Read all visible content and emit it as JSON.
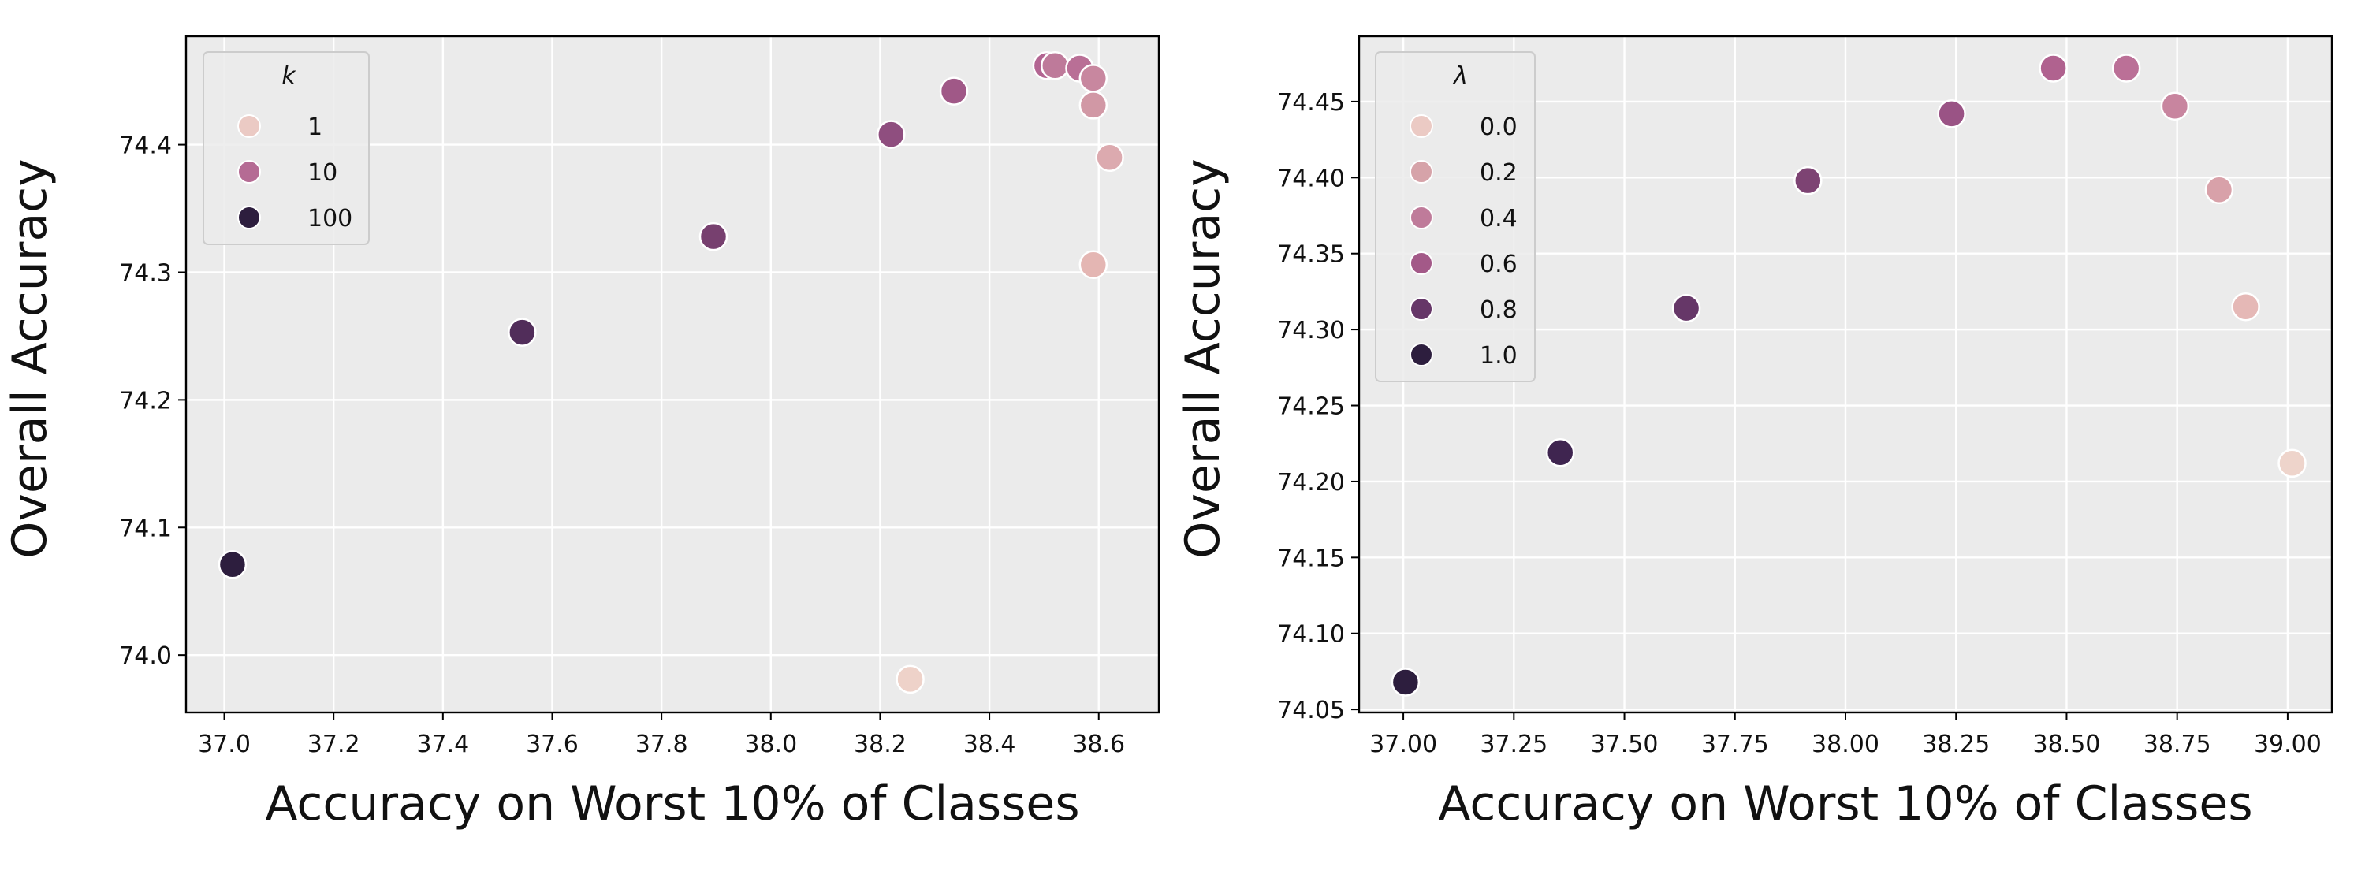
{
  "figure_background": "#ffffff",
  "panel_background": "#ebebeb",
  "grid_color": "#ffffff",
  "marker_edge_color": "#ffffff",
  "chart_data": [
    {
      "type": "scatter",
      "xlabel": "Accuracy on Worst 10% of Classes",
      "ylabel": "Overall Accuracy",
      "xlim": [
        36.93,
        38.71
      ],
      "ylim": [
        73.955,
        74.485
      ],
      "xticks": [
        37.0,
        37.2,
        37.4,
        37.6,
        37.8,
        38.0,
        38.2,
        38.4,
        38.6
      ],
      "xtick_labels": [
        "37.0",
        "37.2",
        "37.4",
        "37.6",
        "37.8",
        "38.0",
        "38.2",
        "38.4",
        "38.6"
      ],
      "yticks": [
        74.0,
        74.1,
        74.2,
        74.3,
        74.4
      ],
      "ytick_labels": [
        "74.0",
        "74.1",
        "74.2",
        "74.3",
        "74.4"
      ],
      "grid": true,
      "legend": {
        "title": "k",
        "placement": "upper-left",
        "entries": [
          {
            "label": "1",
            "color": "#ebcac4"
          },
          {
            "label": "10",
            "color": "#b56b94"
          },
          {
            "label": "100",
            "color": "#2d1e3e"
          }
        ]
      },
      "points": [
        {
          "x": 37.015,
          "y": 74.071,
          "color": "#2d1e3e"
        },
        {
          "x": 37.545,
          "y": 74.253,
          "color": "#512d5a"
        },
        {
          "x": 37.895,
          "y": 74.328,
          "color": "#77406f"
        },
        {
          "x": 38.22,
          "y": 74.408,
          "color": "#8f4e7f"
        },
        {
          "x": 38.335,
          "y": 74.442,
          "color": "#a05887"
        },
        {
          "x": 38.505,
          "y": 74.462,
          "color": "#b36592"
        },
        {
          "x": 38.52,
          "y": 74.462,
          "color": "#be7a9a"
        },
        {
          "x": 38.565,
          "y": 74.46,
          "color": "#b96f96"
        },
        {
          "x": 38.59,
          "y": 74.452,
          "color": "#c8879f"
        },
        {
          "x": 38.59,
          "y": 74.431,
          "color": "#d198a5"
        },
        {
          "x": 38.62,
          "y": 74.39,
          "color": "#dcaaaf"
        },
        {
          "x": 38.59,
          "y": 74.306,
          "color": "#e4b6b3"
        },
        {
          "x": 38.255,
          "y": 73.981,
          "color": "#eed2c9"
        }
      ]
    },
    {
      "type": "scatter",
      "xlabel": "Accuracy on Worst 10% of Classes",
      "ylabel": "Overall Accuracy",
      "xlim": [
        36.9,
        39.1
      ],
      "ylim": [
        74.048,
        74.493
      ],
      "xticks": [
        37.0,
        37.25,
        37.5,
        37.75,
        38.0,
        38.25,
        38.5,
        38.75,
        39.0
      ],
      "xtick_labels": [
        "37.00",
        "37.25",
        "37.50",
        "37.75",
        "38.00",
        "38.25",
        "38.50",
        "38.75",
        "39.00"
      ],
      "yticks": [
        74.05,
        74.1,
        74.15,
        74.2,
        74.25,
        74.3,
        74.35,
        74.4,
        74.45
      ],
      "ytick_labels": [
        "74.05",
        "74.10",
        "74.15",
        "74.20",
        "74.25",
        "74.30",
        "74.35",
        "74.40",
        "74.45"
      ],
      "grid": true,
      "legend": {
        "title": "λ",
        "placement": "upper-left",
        "entries": [
          {
            "label": "0.0",
            "color": "#ebcac4"
          },
          {
            "label": "0.2",
            "color": "#d6a3a9"
          },
          {
            "label": "0.4",
            "color": "#bf7b9a"
          },
          {
            "label": "0.6",
            "color": "#a35988"
          },
          {
            "label": "0.8",
            "color": "#663768"
          },
          {
            "label": "1.0",
            "color": "#2d1e3e"
          }
        ]
      },
      "points": [
        {
          "x": 37.005,
          "y": 74.068,
          "color": "#2d1e3e"
        },
        {
          "x": 37.355,
          "y": 74.219,
          "color": "#3f2550"
        },
        {
          "x": 37.64,
          "y": 74.314,
          "color": "#663768"
        },
        {
          "x": 37.915,
          "y": 74.398,
          "color": "#7d4373"
        },
        {
          "x": 38.24,
          "y": 74.442,
          "color": "#9a5385"
        },
        {
          "x": 38.47,
          "y": 74.472,
          "color": "#b0628f"
        },
        {
          "x": 38.635,
          "y": 74.472,
          "color": "#bb7097"
        },
        {
          "x": 38.745,
          "y": 74.447,
          "color": "#c8859f"
        },
        {
          "x": 38.845,
          "y": 74.392,
          "color": "#d8a1a9"
        },
        {
          "x": 38.905,
          "y": 74.315,
          "color": "#e5b8b6"
        },
        {
          "x": 39.01,
          "y": 74.212,
          "color": "#eed4cb"
        }
      ]
    }
  ]
}
